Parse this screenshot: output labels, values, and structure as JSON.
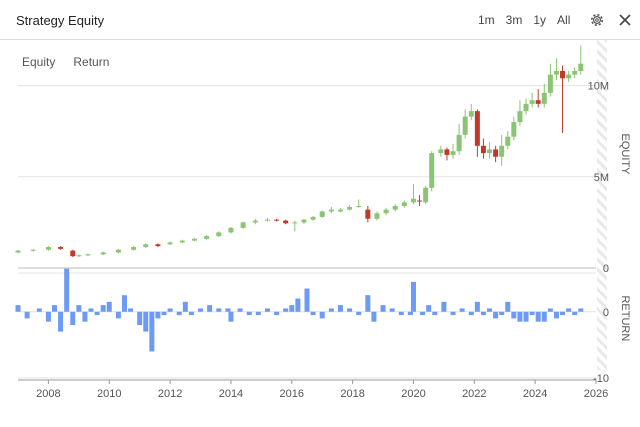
{
  "window": {
    "title": "Strategy Equity",
    "ranges": [
      "1m",
      "3m",
      "1y",
      "All"
    ]
  },
  "toggles": [
    "Equity",
    "Return"
  ],
  "icons": {
    "settings": "gear-icon",
    "close": "close-icon"
  },
  "colors": {
    "up": "#8bc474",
    "down": "#c0392b",
    "returns": "#6d9af5",
    "grid": "#e3e3e3"
  },
  "chart_data": [
    {
      "type": "candlestick",
      "ylabel": "EQUITY",
      "ylim": [
        0,
        12.5
      ],
      "y_tick_labels": [
        "0",
        "5M",
        "10M"
      ],
      "y_ticks": [
        0,
        5,
        10
      ],
      "xlim": [
        2007,
        2026
      ],
      "series": [
        {
          "x": [
            2007.0,
            2007.5,
            2008.0,
            2008.4,
            2008.8,
            2009.0,
            2009.3,
            2009.8,
            2010.3,
            2010.8,
            2011.2,
            2011.6,
            2012.0,
            2012.4,
            2012.8,
            2013.2,
            2013.6,
            2014.0,
            2014.4,
            2014.8,
            2015.2,
            2015.5,
            2015.8,
            2016.1,
            2016.4,
            2016.7,
            2017.0,
            2017.3,
            2017.6,
            2017.9,
            2018.2,
            2018.5,
            2018.8,
            2019.1,
            2019.4,
            2019.7,
            2020.0,
            2020.2,
            2020.4,
            2020.6,
            2020.9,
            2021.1,
            2021.3,
            2021.5,
            2021.7,
            2021.9,
            2022.1,
            2022.3,
            2022.5,
            2022.7,
            2022.9,
            2023.1,
            2023.3,
            2023.5,
            2023.7,
            2023.9,
            2024.1,
            2024.3,
            2024.5,
            2024.7,
            2024.9,
            2025.1,
            2025.3,
            2025.5
          ],
          "open": [
            0.85,
            0.95,
            1.0,
            1.15,
            0.95,
            0.65,
            0.7,
            0.75,
            0.85,
            1.0,
            1.15,
            1.3,
            1.3,
            1.4,
            1.5,
            1.6,
            1.75,
            1.95,
            2.2,
            2.5,
            2.6,
            2.65,
            2.6,
            2.45,
            2.5,
            2.65,
            2.8,
            3.1,
            3.1,
            3.2,
            3.35,
            3.2,
            2.7,
            3.0,
            3.2,
            3.4,
            3.6,
            3.7,
            3.6,
            4.4,
            6.3,
            6.5,
            6.2,
            6.4,
            7.3,
            8.3,
            8.6,
            6.7,
            6.3,
            6.5,
            6.1,
            6.7,
            7.2,
            8.0,
            8.6,
            9.0,
            9.2,
            9.0,
            9.6,
            10.6,
            10.8,
            10.4,
            10.6,
            10.8
          ],
          "close": [
            0.95,
            1.0,
            1.15,
            1.05,
            0.65,
            0.7,
            0.75,
            0.85,
            1.0,
            1.15,
            1.3,
            1.2,
            1.4,
            1.5,
            1.6,
            1.75,
            1.95,
            2.2,
            2.5,
            2.6,
            2.65,
            2.6,
            2.45,
            2.5,
            2.65,
            2.8,
            3.1,
            3.2,
            3.2,
            3.35,
            3.4,
            2.7,
            3.0,
            3.2,
            3.4,
            3.6,
            3.8,
            3.65,
            4.4,
            6.3,
            6.5,
            6.2,
            6.4,
            7.3,
            8.3,
            8.6,
            6.7,
            6.3,
            6.5,
            6.1,
            6.7,
            7.2,
            8.0,
            8.6,
            9.0,
            9.2,
            9.0,
            9.6,
            10.6,
            10.8,
            10.4,
            10.6,
            10.8,
            11.2
          ],
          "high": [
            1.0,
            1.05,
            1.2,
            1.2,
            1.0,
            0.75,
            0.8,
            0.9,
            1.05,
            1.2,
            1.35,
            1.35,
            1.45,
            1.55,
            1.65,
            1.8,
            2.0,
            2.25,
            2.55,
            2.7,
            2.75,
            2.7,
            2.65,
            2.6,
            2.7,
            2.85,
            3.15,
            3.35,
            3.3,
            3.45,
            3.75,
            3.4,
            3.1,
            3.3,
            3.5,
            3.7,
            4.6,
            4.0,
            4.5,
            6.4,
            6.7,
            6.6,
            6.8,
            7.9,
            8.7,
            9.0,
            8.7,
            7.1,
            6.9,
            6.7,
            7.3,
            7.5,
            8.3,
            9.2,
            9.3,
            9.6,
            9.8,
            10.1,
            11.2,
            11.5,
            11.1,
            10.8,
            11.0,
            12.2
          ],
          "low": [
            0.8,
            0.9,
            0.95,
            1.0,
            0.6,
            0.6,
            0.65,
            0.7,
            0.8,
            0.95,
            1.1,
            1.15,
            1.25,
            1.35,
            1.45,
            1.55,
            1.7,
            1.9,
            2.15,
            2.4,
            2.55,
            2.55,
            2.4,
            2.0,
            2.4,
            2.6,
            2.75,
            3.0,
            3.05,
            3.15,
            3.3,
            2.5,
            2.6,
            2.9,
            3.1,
            3.3,
            3.5,
            3.4,
            3.5,
            4.2,
            6.1,
            5.9,
            6.0,
            6.2,
            7.1,
            8.1,
            6.1,
            6.0,
            6.0,
            5.8,
            5.6,
            6.5,
            7.0,
            7.8,
            8.4,
            8.8,
            8.8,
            8.8,
            9.4,
            10.3,
            7.4,
            10.2,
            10.4,
            10.6
          ]
        }
      ]
    },
    {
      "type": "bar",
      "ylabel": "RETURN",
      "ylim": [
        -10,
        6
      ],
      "y_tick_labels": [
        "0",
        "-10"
      ],
      "y_ticks": [
        0,
        -10
      ],
      "x_tick_labels": [
        "2008",
        "2010",
        "2012",
        "2014",
        "2016",
        "2018",
        "2020",
        "2022",
        "2024",
        "2026"
      ],
      "x_ticks": [
        2008,
        2010,
        2012,
        2014,
        2016,
        2018,
        2020,
        2022,
        2024,
        2026
      ],
      "series": [
        {
          "x": [
            2007.0,
            2007.3,
            2007.7,
            2008.0,
            2008.2,
            2008.4,
            2008.6,
            2008.8,
            2009.0,
            2009.2,
            2009.4,
            2009.6,
            2009.8,
            2010.0,
            2010.3,
            2010.5,
            2010.7,
            2011.0,
            2011.2,
            2011.4,
            2011.6,
            2011.8,
            2012.0,
            2012.3,
            2012.5,
            2012.7,
            2013.0,
            2013.3,
            2013.6,
            2013.9,
            2014.0,
            2014.3,
            2014.6,
            2014.9,
            2015.2,
            2015.5,
            2015.8,
            2016.0,
            2016.2,
            2016.5,
            2016.7,
            2017.0,
            2017.3,
            2017.6,
            2017.9,
            2018.2,
            2018.5,
            2018.7,
            2019.0,
            2019.3,
            2019.6,
            2019.9,
            2020.0,
            2020.3,
            2020.5,
            2020.7,
            2021.0,
            2021.3,
            2021.6,
            2021.9,
            2022.1,
            2022.3,
            2022.5,
            2022.7,
            2022.9,
            2023.1,
            2023.3,
            2023.5,
            2023.7,
            2023.9,
            2024.1,
            2024.3,
            2024.5,
            2024.7,
            2024.9,
            2025.1,
            2025.3,
            2025.5
          ],
          "values": [
            1,
            -1,
            0.5,
            -1.5,
            1,
            -3,
            6.5,
            -2,
            1,
            -1.5,
            0.5,
            -0.5,
            1,
            1.5,
            -1,
            2.5,
            0.5,
            -2,
            -3,
            -6,
            -1,
            -0.5,
            0.5,
            -0.5,
            1.5,
            -0.5,
            0.5,
            1,
            0.5,
            0.5,
            -1.5,
            0.5,
            -0.5,
            -0.5,
            0.5,
            -0.5,
            0.5,
            1,
            2,
            3.5,
            -0.5,
            -1,
            0.5,
            1,
            0.5,
            -0.5,
            2.5,
            -1.5,
            1,
            0.5,
            -0.5,
            -0.5,
            4.5,
            -0.5,
            1,
            -0.5,
            1.5,
            -0.5,
            0.5,
            -0.5,
            1.5,
            -0.5,
            0.5,
            -1,
            -0.5,
            1.5,
            -1,
            -1.5,
            -1.5,
            -0.5,
            -1.5,
            -1.5,
            0.5,
            -1,
            -0.5,
            0.5,
            -0.5,
            0.5
          ]
        }
      ]
    }
  ]
}
